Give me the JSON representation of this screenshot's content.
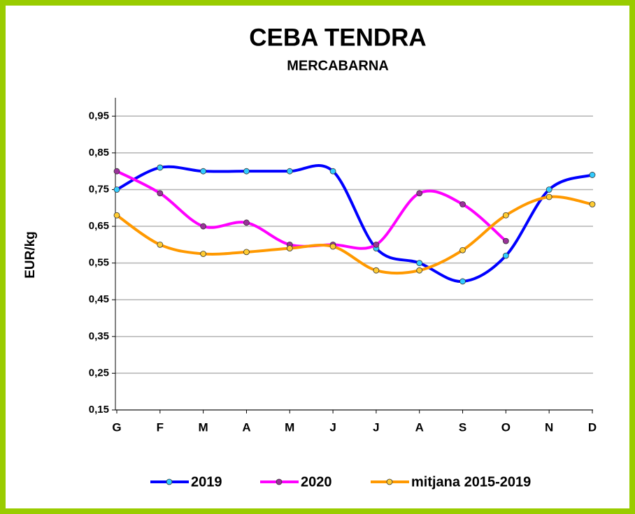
{
  "chart_data": {
    "type": "line",
    "title": "CEBA TENDRA",
    "subtitle": "MERCABARNA",
    "y_label": "EUR/kg",
    "categories": [
      "G",
      "F",
      "M",
      "A",
      "M",
      "J",
      "J",
      "A",
      "S",
      "O",
      "N",
      "D"
    ],
    "series": [
      {
        "name": "2019",
        "color": "#0000ff",
        "marker_color": "#33ccff",
        "values": [
          0.75,
          0.81,
          0.8,
          0.8,
          0.8,
          0.8,
          0.59,
          0.55,
          0.5,
          0.57,
          0.75,
          0.79
        ]
      },
      {
        "name": "2020",
        "color": "#ff00ff",
        "marker_color": "#993399",
        "values": [
          0.8,
          0.74,
          0.65,
          0.66,
          0.6,
          0.6,
          0.6,
          0.74,
          0.71,
          0.61,
          null,
          null
        ]
      },
      {
        "name": "mitjana 2015-2019",
        "color": "#ff9900",
        "marker_color": "#ffcc33",
        "values": [
          0.68,
          0.6,
          0.575,
          0.58,
          0.59,
          0.595,
          0.53,
          0.53,
          0.585,
          0.68,
          0.73,
          0.71
        ]
      }
    ],
    "ylim": [
      0.15,
      1.0
    ],
    "yticks": [
      {
        "value": 0.15,
        "label": "0,15"
      },
      {
        "value": 0.25,
        "label": "0,25"
      },
      {
        "value": 0.35,
        "label": "0,35"
      },
      {
        "value": 0.45,
        "label": "0,45"
      },
      {
        "value": 0.55,
        "label": "0,55"
      },
      {
        "value": 0.65,
        "label": "0,65"
      },
      {
        "value": 0.75,
        "label": "0,75"
      },
      {
        "value": 0.85,
        "label": "0,85"
      },
      {
        "value": 0.95,
        "label": "0,95"
      }
    ],
    "grid": true,
    "smooth": true,
    "legend": "bottom"
  }
}
